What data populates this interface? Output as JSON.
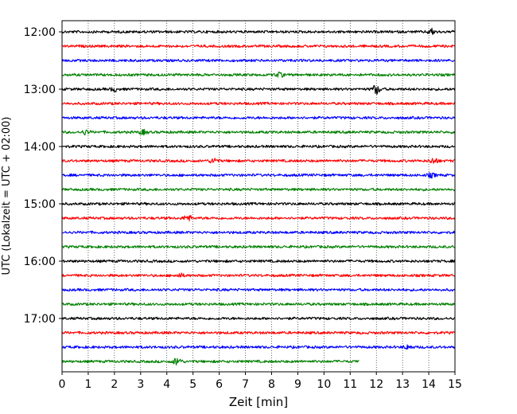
{
  "chart_data": {
    "type": "line",
    "title": "",
    "xlabel": "Zeit  [min]",
    "ylabel": "UTC (Lokalzeit = UTC + 02:00)",
    "xlim": [
      0,
      15
    ],
    "x_ticks": [
      0,
      1,
      2,
      3,
      4,
      5,
      6,
      7,
      8,
      9,
      10,
      11,
      12,
      13,
      14,
      15
    ],
    "x_tick_labels": [
      "0",
      "1",
      "2",
      "3",
      "4",
      "5",
      "6",
      "7",
      "8",
      "9",
      "10",
      "11",
      "12",
      "13",
      "14",
      "15"
    ],
    "y_ticks": [
      "12:00",
      "13:00",
      "14:00",
      "15:00",
      "16:00",
      "17:00"
    ],
    "grid": "vertical dotted",
    "trace_interval_min": 15,
    "trace_colors": [
      "#000000",
      "#ff0000",
      "#0000ff",
      "#008000"
    ],
    "traces": [
      {
        "start": "12:00",
        "end_min": 15,
        "events": [
          {
            "t": 14.1,
            "amp": 2.0
          }
        ]
      },
      {
        "start": "12:15",
        "end_min": 15,
        "events": []
      },
      {
        "start": "12:30",
        "end_min": 15,
        "events": []
      },
      {
        "start": "12:45",
        "end_min": 15,
        "events": [
          {
            "t": 8.3,
            "amp": 1.6
          }
        ]
      },
      {
        "start": "13:00",
        "end_min": 15,
        "events": [
          {
            "t": 2.0,
            "amp": 1.4
          },
          {
            "t": 12.0,
            "amp": 3.5
          }
        ]
      },
      {
        "start": "13:15",
        "end_min": 15,
        "events": []
      },
      {
        "start": "13:30",
        "end_min": 15,
        "events": []
      },
      {
        "start": "13:45",
        "end_min": 15,
        "events": [
          {
            "t": 0.9,
            "amp": 1.6
          },
          {
            "t": 3.1,
            "amp": 1.5
          }
        ]
      },
      {
        "start": "14:00",
        "end_min": 15,
        "events": []
      },
      {
        "start": "14:15",
        "end_min": 15,
        "events": [
          {
            "t": 5.8,
            "amp": 2.0
          },
          {
            "t": 14.2,
            "amp": 2.2
          }
        ]
      },
      {
        "start": "14:30",
        "end_min": 15,
        "events": [
          {
            "t": 14.1,
            "amp": 1.5
          }
        ]
      },
      {
        "start": "14:45",
        "end_min": 15,
        "events": []
      },
      {
        "start": "15:00",
        "end_min": 15,
        "events": []
      },
      {
        "start": "15:15",
        "end_min": 15,
        "events": [
          {
            "t": 4.8,
            "amp": 2.2
          }
        ]
      },
      {
        "start": "15:30",
        "end_min": 15,
        "events": []
      },
      {
        "start": "15:45",
        "end_min": 15,
        "events": []
      },
      {
        "start": "16:00",
        "end_min": 15,
        "events": []
      },
      {
        "start": "16:15",
        "end_min": 15,
        "events": [
          {
            "t": 4.5,
            "amp": 1.3
          }
        ]
      },
      {
        "start": "16:30",
        "end_min": 15,
        "events": []
      },
      {
        "start": "16:45",
        "end_min": 15,
        "events": []
      },
      {
        "start": "17:00",
        "end_min": 15,
        "events": []
      },
      {
        "start": "17:15",
        "end_min": 15,
        "events": []
      },
      {
        "start": "17:30",
        "end_min": 15,
        "events": [
          {
            "t": 13.2,
            "amp": 1.5
          }
        ]
      },
      {
        "start": "17:45",
        "end_min": 11.35,
        "events": [
          {
            "t": 4.4,
            "amp": 3.0
          }
        ]
      }
    ]
  }
}
